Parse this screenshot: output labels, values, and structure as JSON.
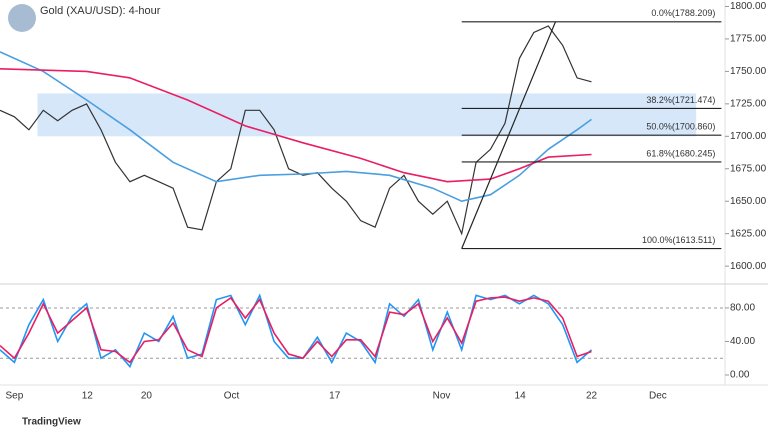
{
  "header": {
    "title": "Gold (XAU/USD): 4-hour",
    "brand": "TradingView"
  },
  "chart_data": [
    {
      "type": "line",
      "title": "Gold (XAU/USD): 4-hour",
      "x": [
        -2,
        0,
        2,
        4,
        6,
        8,
        10,
        12,
        14,
        16,
        18,
        20,
        22,
        24,
        26,
        28,
        30,
        32,
        34,
        36,
        38,
        40,
        42,
        44,
        46,
        48,
        50,
        52,
        54,
        56,
        58,
        60,
        62,
        64,
        66,
        68,
        70,
        72,
        74,
        76,
        78,
        80
      ],
      "xlim": [
        -2,
        98.5
      ],
      "xticks": [
        {
          "value": 0,
          "label": "Sep"
        },
        {
          "value": 10.1,
          "label": "12"
        },
        {
          "value": 18.3,
          "label": "20"
        },
        {
          "value": 30.1,
          "label": "Oct"
        },
        {
          "value": 44.4,
          "label": "17"
        },
        {
          "value": 59.2,
          "label": "Nov"
        },
        {
          "value": 70.1,
          "label": "14"
        },
        {
          "value": 80,
          "label": "22"
        },
        {
          "value": 89.2,
          "label": "Dec"
        }
      ],
      "ylim": [
        1587,
        1805
      ],
      "yticks": [
        {
          "value": 1600,
          "label": "1600.00"
        },
        {
          "value": 1625,
          "label": "1625.00"
        },
        {
          "value": 1650,
          "label": "1650.00"
        },
        {
          "value": 1675,
          "label": "1675.00"
        },
        {
          "value": 1700,
          "label": "1700.00"
        },
        {
          "value": 1725,
          "label": "1725.00"
        },
        {
          "value": 1750,
          "label": "1750.00"
        },
        {
          "value": 1775,
          "label": "1775.00"
        },
        {
          "value": 1800,
          "label": "1800.00"
        }
      ],
      "series": [
        {
          "color": "#333333",
          "values": [
            1720,
            1715,
            1705,
            1720,
            1712,
            1720,
            1725,
            1705,
            1680,
            1665,
            1670,
            1665,
            1660,
            1630,
            1628,
            1665,
            1675,
            1720,
            1720,
            1705,
            1675,
            1670,
            1672,
            1660,
            1650,
            1635,
            1630,
            1660,
            1670,
            1650,
            1640,
            1650,
            1625,
            1680,
            1690,
            1710,
            1760,
            1780,
            1785,
            1770,
            1745,
            1742
          ]
        },
        {
          "color": "#4a9fe0",
          "x": [
            -2,
            4,
            10,
            16,
            22,
            28,
            34,
            40,
            46,
            52,
            58,
            62,
            66,
            70,
            74,
            78,
            80
          ],
          "values": [
            1765,
            1750,
            1728,
            1705,
            1680,
            1665,
            1670,
            1671,
            1673,
            1670,
            1660,
            1650,
            1655,
            1670,
            1690,
            1705,
            1713
          ]
        },
        {
          "color": "#e91e63",
          "x": [
            -2,
            10,
            16,
            24,
            32,
            40,
            48,
            54,
            60,
            66,
            70,
            74,
            80
          ],
          "values": [
            1752,
            1750,
            1745,
            1728,
            1708,
            1695,
            1683,
            1672,
            1665,
            1667,
            1675,
            1684,
            1686
          ]
        }
      ],
      "zone": {
        "color": "#cfe3f8",
        "xlim": [
          3.2,
          94.5
        ],
        "ylim": [
          1700,
          1733
        ]
      },
      "trendline": {
        "x": [
          62,
          75
        ],
        "values": [
          1613.511,
          1788.209
        ]
      },
      "fib": {
        "xlim": [
          62,
          98
        ],
        "levels": [
          {
            "label": "0.0%(1788.209)",
            "value": 1788.209
          },
          {
            "label": "38.2%(1721.474)",
            "value": 1721.474
          },
          {
            "label": "50.0%(1700.860)",
            "value": 1700.86
          },
          {
            "label": "61.8%(1680.245)",
            "value": 1680.245
          },
          {
            "label": "100.0%(1613.511)",
            "value": 1613.511
          }
        ]
      }
    },
    {
      "type": "line",
      "x": [
        -2,
        0,
        2,
        4,
        6,
        8,
        10,
        12,
        14,
        16,
        18,
        20,
        22,
        24,
        26,
        28,
        30,
        32,
        34,
        36,
        38,
        40,
        42,
        44,
        46,
        48,
        50,
        52,
        54,
        56,
        58,
        60,
        62,
        64,
        66,
        68,
        70,
        72,
        74,
        76,
        78,
        80
      ],
      "ylim": [
        -6,
        105
      ],
      "yticks": [
        {
          "value": 0,
          "label": "0.00"
        },
        {
          "value": 40,
          "label": "40.00"
        },
        {
          "value": 80,
          "label": "80.00"
        }
      ],
      "levels": [
        20,
        80
      ],
      "series": [
        {
          "color": "#2196f3",
          "values": [
            30,
            15,
            60,
            90,
            40,
            70,
            85,
            20,
            30,
            10,
            50,
            40,
            70,
            20,
            25,
            90,
            95,
            60,
            95,
            40,
            20,
            20,
            45,
            15,
            50,
            40,
            15,
            85,
            70,
            90,
            30,
            75,
            30,
            95,
            90,
            95,
            85,
            95,
            85,
            60,
            15,
            30
          ]
        },
        {
          "color": "#e91e63",
          "values": [
            35,
            20,
            50,
            85,
            50,
            65,
            80,
            30,
            28,
            15,
            40,
            42,
            62,
            30,
            22,
            80,
            92,
            68,
            90,
            50,
            25,
            20,
            40,
            22,
            42,
            42,
            22,
            75,
            72,
            85,
            40,
            68,
            38,
            88,
            92,
            93,
            88,
            92,
            88,
            68,
            22,
            28
          ]
        }
      ]
    }
  ]
}
